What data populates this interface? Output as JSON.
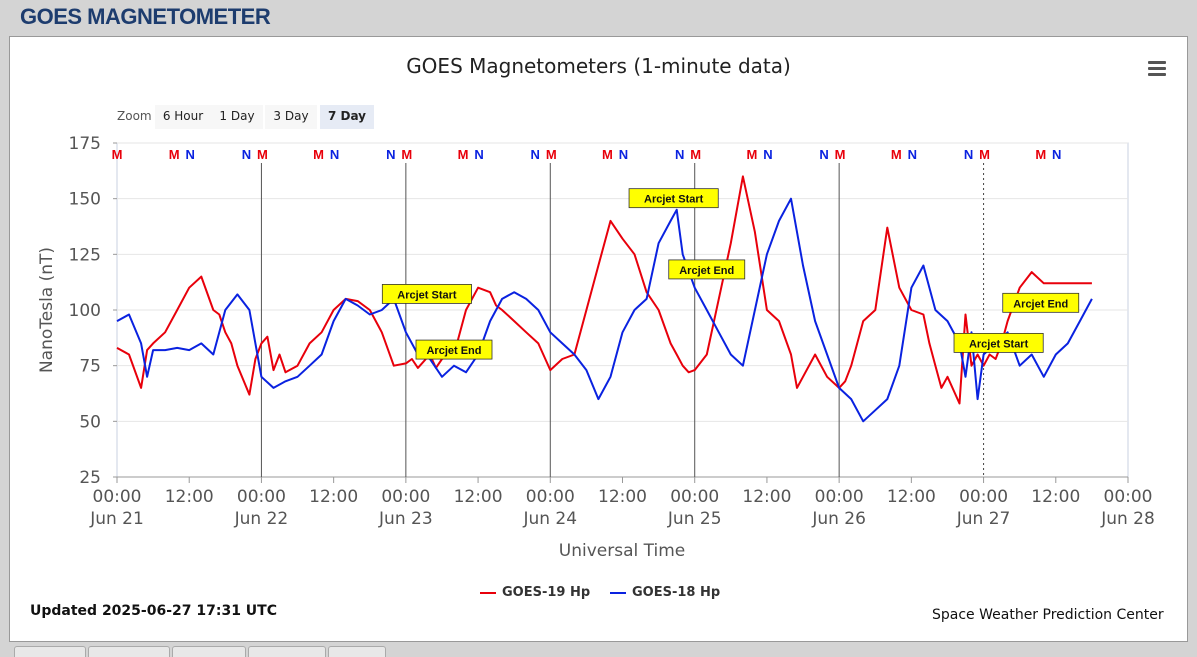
{
  "page": {
    "title": "GOES MAGNETOMETER"
  },
  "zoom": {
    "label": "Zoom",
    "buttons": [
      "6 Hour",
      "1 Day",
      "3 Day",
      "7 Day"
    ],
    "active": "7 Day"
  },
  "footer": {
    "updated": "Updated 2025-06-27 17:31 UTC",
    "credit": "Space Weather Prediction Center"
  },
  "colors": {
    "goes19": "#e8000b",
    "goes18": "#0a22e0",
    "annotation_bg": "#ffff00"
  },
  "chart_data": {
    "type": "line",
    "title": "GOES Magnetometers (1-minute data)",
    "xlabel": "Universal Time",
    "ylabel": "NanoTesla (nT)",
    "ylim": [
      25,
      175
    ],
    "yticks": [
      25,
      50,
      75,
      100,
      125,
      150,
      175
    ],
    "xlim_hours": [
      0,
      168
    ],
    "xticks": [
      {
        "h": 0,
        "time": "00:00",
        "date": "Jun 21"
      },
      {
        "h": 12,
        "time": "12:00",
        "date": ""
      },
      {
        "h": 24,
        "time": "00:00",
        "date": "Jun 22"
      },
      {
        "h": 36,
        "time": "12:00",
        "date": ""
      },
      {
        "h": 48,
        "time": "00:00",
        "date": "Jun 23"
      },
      {
        "h": 60,
        "time": "12:00",
        "date": ""
      },
      {
        "h": 72,
        "time": "00:00",
        "date": "Jun 24"
      },
      {
        "h": 84,
        "time": "12:00",
        "date": ""
      },
      {
        "h": 96,
        "time": "00:00",
        "date": "Jun 25"
      },
      {
        "h": 108,
        "time": "12:00",
        "date": ""
      },
      {
        "h": 120,
        "time": "00:00",
        "date": "Jun 26"
      },
      {
        "h": 132,
        "time": "12:00",
        "date": ""
      },
      {
        "h": 144,
        "time": "00:00",
        "date": "Jun 27"
      },
      {
        "h": 156,
        "time": "12:00",
        "date": ""
      },
      {
        "h": 168,
        "time": "00:00",
        "date": "Jun 28"
      }
    ],
    "grid": true,
    "legend_position": "bottom-center",
    "series": [
      {
        "name": "GOES-19 Hp",
        "color": "#e8000b",
        "x": [
          0,
          2,
          4,
          5,
          6,
          8,
          10,
          12,
          14,
          16,
          17,
          18,
          19,
          20,
          22,
          23,
          24,
          25,
          26,
          27,
          28,
          30,
          32,
          34,
          36,
          38,
          40,
          42,
          44,
          46,
          48,
          49,
          50,
          52,
          53,
          54,
          56,
          58,
          60,
          62,
          63,
          64,
          66,
          68,
          70,
          72,
          74,
          76,
          78,
          80,
          82,
          84,
          86,
          88,
          90,
          92,
          93,
          94,
          95,
          96,
          98,
          100,
          102,
          104,
          106,
          108,
          110,
          112,
          113,
          114,
          116,
          118,
          120,
          121,
          122,
          124,
          126,
          128,
          130,
          132,
          134,
          135,
          136,
          137,
          138,
          140,
          141,
          142,
          143,
          144,
          145,
          146,
          147,
          148,
          150,
          152,
          154,
          156,
          158,
          160,
          161,
          162
        ],
        "y": [
          83,
          80,
          65,
          82,
          85,
          90,
          100,
          110,
          115,
          100,
          98,
          90,
          85,
          75,
          62,
          78,
          85,
          88,
          73,
          80,
          72,
          75,
          85,
          90,
          100,
          105,
          104,
          100,
          90,
          75,
          76,
          78,
          74,
          80,
          74,
          78,
          80,
          100,
          110,
          108,
          102,
          100,
          95,
          90,
          85,
          73,
          78,
          80,
          100,
          120,
          140,
          132,
          125,
          108,
          100,
          85,
          80,
          75,
          72,
          73,
          80,
          105,
          130,
          160,
          135,
          100,
          95,
          80,
          65,
          70,
          80,
          70,
          65,
          68,
          75,
          95,
          100,
          137,
          110,
          100,
          98,
          85,
          75,
          65,
          70,
          58,
          98,
          75,
          80,
          75,
          80,
          78,
          85,
          95,
          110,
          117,
          112,
          112,
          112,
          112,
          112,
          112
        ],
        "y_notes": "approximate readings"
      },
      {
        "name": "GOES-18 Hp",
        "color": "#0a22e0",
        "x": [
          0,
          2,
          4,
          5,
          6,
          8,
          10,
          12,
          14,
          16,
          18,
          20,
          22,
          23,
          24,
          26,
          28,
          30,
          32,
          34,
          36,
          38,
          40,
          42,
          44,
          46,
          48,
          50,
          52,
          54,
          56,
          58,
          60,
          62,
          64,
          66,
          68,
          70,
          72,
          74,
          76,
          78,
          80,
          82,
          84,
          86,
          88,
          90,
          92,
          93,
          94,
          96,
          98,
          100,
          102,
          104,
          106,
          108,
          110,
          112,
          114,
          116,
          118,
          120,
          122,
          124,
          126,
          128,
          130,
          132,
          134,
          136,
          138,
          140,
          141,
          142,
          143,
          144,
          146,
          148,
          150,
          152,
          154,
          156,
          158,
          160,
          162
        ],
        "y": [
          95,
          98,
          85,
          70,
          82,
          82,
          83,
          82,
          85,
          80,
          100,
          107,
          100,
          85,
          70,
          65,
          68,
          70,
          75,
          80,
          95,
          105,
          102,
          98,
          100,
          105,
          90,
          80,
          78,
          70,
          75,
          72,
          80,
          95,
          105,
          108,
          105,
          100,
          90,
          85,
          80,
          73,
          60,
          70,
          90,
          100,
          105,
          130,
          140,
          145,
          125,
          110,
          100,
          90,
          80,
          75,
          100,
          125,
          140,
          150,
          120,
          95,
          80,
          65,
          60,
          50,
          55,
          60,
          75,
          110,
          120,
          100,
          95,
          85,
          70,
          90,
          60,
          80,
          85,
          90,
          75,
          80,
          70,
          80,
          85,
          95,
          105
        ]
      }
    ],
    "annotations": [
      {
        "text": "Arcjet Start",
        "h": 51.5,
        "v": 107
      },
      {
        "text": "Arcjet End",
        "h": 56,
        "v": 82
      },
      {
        "text": "Arcjet Start",
        "h": 92.5,
        "v": 150
      },
      {
        "text": "Arcjet End",
        "h": 98,
        "v": 118
      },
      {
        "text": "Arcjet Start",
        "h": 146.5,
        "v": 85
      },
      {
        "text": "Arcjet End",
        "h": 153.5,
        "v": 103
      }
    ],
    "vertical_markers": [
      24,
      48,
      72,
      96,
      120,
      144
    ],
    "now_marker_h": 144,
    "mn_markers": [
      {
        "h": 0,
        "labels": [
          "M"
        ]
      },
      {
        "h": 9.5,
        "labels": [
          "M",
          "N"
        ]
      },
      {
        "h": 21.5,
        "labels": [
          "N",
          "M"
        ]
      },
      {
        "h": 33.5,
        "labels": [
          "M",
          "N"
        ]
      },
      {
        "h": 45.5,
        "labels": [
          "N",
          "M"
        ]
      },
      {
        "h": 57.5,
        "labels": [
          "M",
          "N"
        ]
      },
      {
        "h": 69.5,
        "labels": [
          "N",
          "M"
        ]
      },
      {
        "h": 81.5,
        "labels": [
          "M",
          "N"
        ]
      },
      {
        "h": 93.5,
        "labels": [
          "N",
          "M"
        ]
      },
      {
        "h": 105.5,
        "labels": [
          "M",
          "N"
        ]
      },
      {
        "h": 117.5,
        "labels": [
          "N",
          "M"
        ]
      },
      {
        "h": 129.5,
        "labels": [
          "M",
          "N"
        ]
      },
      {
        "h": 141.5,
        "labels": [
          "N",
          "M"
        ]
      },
      {
        "h": 153.5,
        "labels": [
          "M",
          "N"
        ]
      }
    ]
  },
  "legend": [
    {
      "label": "GOES-19 Hp",
      "color": "#e8000b"
    },
    {
      "label": "GOES-18 Hp",
      "color": "#0a22e0"
    }
  ]
}
